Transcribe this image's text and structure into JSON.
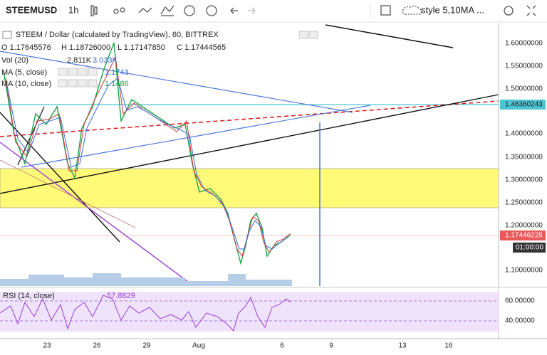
{
  "toolbar": {
    "symbol": "STEEMUSD",
    "interval": "1h",
    "template": "style 5,10MA ..."
  },
  "legend": {
    "title": "STEEM / Dollar (calculated by TradingView), 60, BITTREX",
    "open": "O 1.17645576",
    "high": "H 1.18726000",
    "low": "L 1.17147850",
    "close": "C 1.17444565",
    "vol": "Vol (20)",
    "vol_value": "2.811K",
    "vol_ma": "3.033K",
    "ma5": "MA (5, close)",
    "ma5_value": "1.1743",
    "ma10": "MA (10, close)",
    "ma10_value": "1.1486"
  },
  "price_axis": {
    "labels": [
      "1.60000000",
      "1.55000000",
      "1.50000000",
      "1.40000000",
      "1.35000000",
      "1.30000000",
      "1.25000000",
      "1.20000000",
      "1.10000000"
    ],
    "level": "1.46360243",
    "last": "1.17446225",
    "countdown": "01:00:00"
  },
  "rsi": {
    "label": "RSI (14, close)",
    "value": "57.8829",
    "ticks": [
      "60.00000",
      "40.00000"
    ]
  },
  "time_axis": [
    "23",
    "26",
    "29",
    "Aug",
    "6",
    "9",
    "13",
    "16"
  ]
}
